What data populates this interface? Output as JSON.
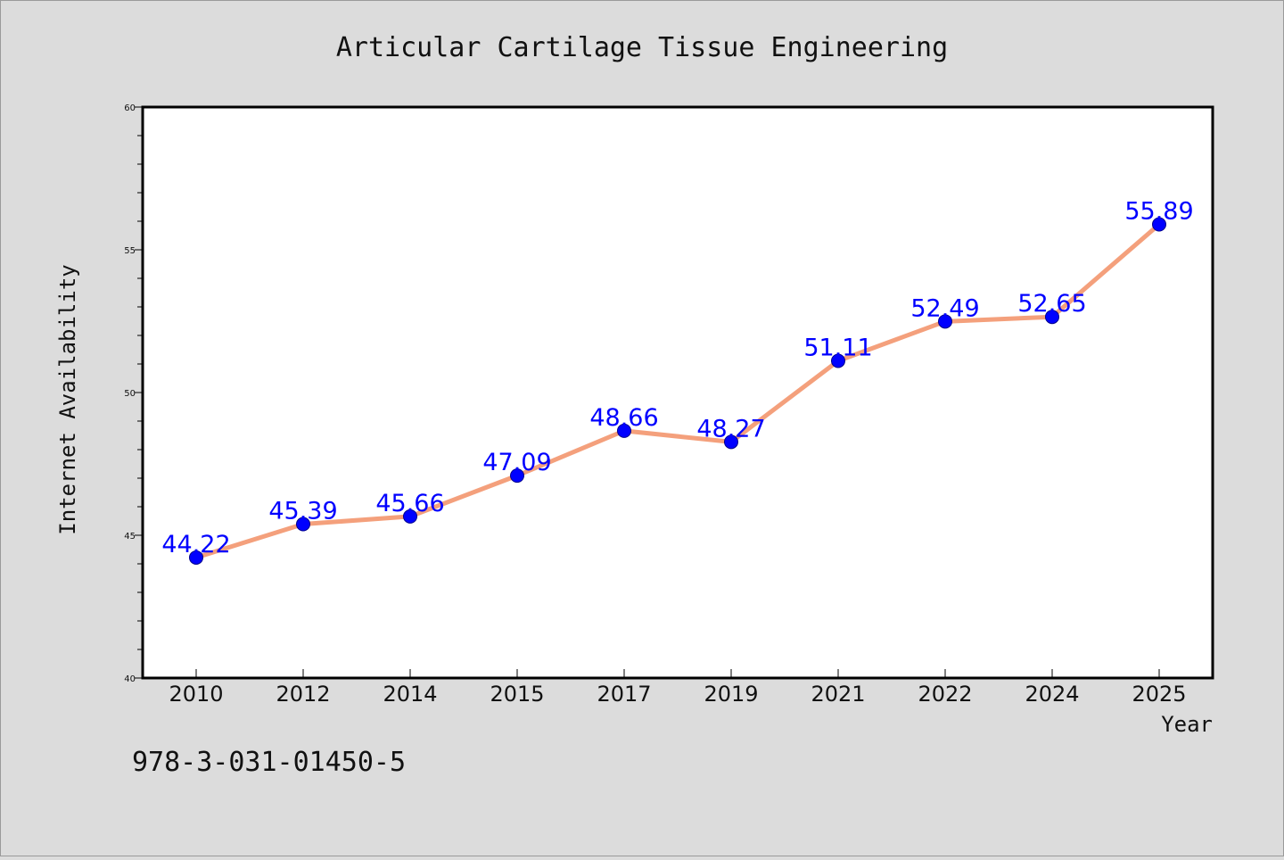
{
  "chart_data": {
    "type": "line",
    "title": "Articular Cartilage Tissue Engineering",
    "xlabel": "Year",
    "ylabel": "Internet Availability",
    "categories": [
      "2010",
      "2012",
      "2014",
      "2015",
      "2017",
      "2019",
      "2021",
      "2022",
      "2024",
      "2025"
    ],
    "series": [
      {
        "values": [
          44.22,
          45.39,
          45.66,
          47.09,
          48.66,
          48.27,
          51.11,
          52.49,
          52.65,
          55.89
        ],
        "labels": [
          "44.22",
          "45.39",
          "45.66",
          "47.09",
          "48.66",
          "48.27",
          "51.11",
          "52.49",
          "52.65",
          "55.89"
        ],
        "line_color": "#f4a07c",
        "marker_color": "#0000ff"
      }
    ],
    "ylim": [
      40,
      60
    ],
    "yticks": [
      "40",
      "45",
      "50",
      "55",
      "60"
    ],
    "grid": false,
    "legend": "none"
  },
  "footer_text": "978-3-031-01450-5",
  "colors": {
    "background": "#dcdcdc",
    "plot_area": "#ffffff",
    "data_label": "#0000ff"
  }
}
